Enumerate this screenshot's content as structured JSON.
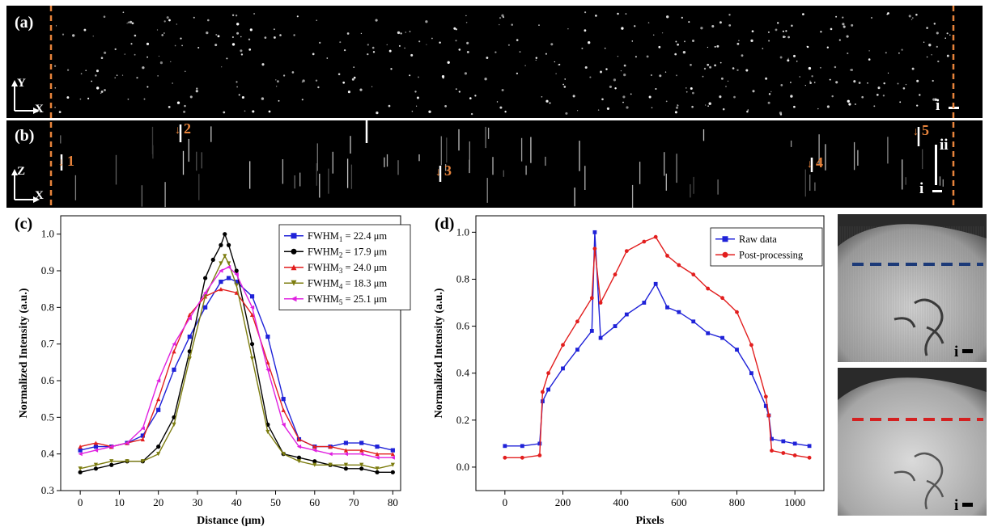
{
  "panels": {
    "a": {
      "label": "(a)",
      "axis_v": "Y",
      "axis_h": "X",
      "scale": "i"
    },
    "b": {
      "label": "(b)",
      "axis_v": "Z",
      "axis_h": "X",
      "scale_i": "i",
      "scale_ii": "ii",
      "markers": [
        "1",
        "2",
        "3",
        "4",
        "5"
      ]
    },
    "c": {
      "label": "(c)"
    },
    "d": {
      "label": "(d)"
    },
    "e": {
      "scale": "i"
    },
    "f": {
      "scale": "i"
    }
  },
  "colors": {
    "orange": "#e8843c",
    "blue_line": "#1c3a78",
    "red_line": "#d42020"
  },
  "chart_data": [
    {
      "type": "line",
      "xlabel": "Distance (μm)",
      "ylabel": "Normalized Intensity (a.u.)",
      "xlim": [
        -5,
        82
      ],
      "ylim": [
        0.3,
        1.05
      ],
      "xticks": [
        0,
        10,
        20,
        30,
        40,
        50,
        60,
        70,
        80
      ],
      "yticks": [
        0.3,
        0.4,
        0.5,
        0.6,
        0.7,
        0.8,
        0.9,
        1.0
      ],
      "legend_position": "top-right",
      "series": [
        {
          "name": "FWHM1 = 22.4 μm",
          "legend_main": "FWHM",
          "legend_sub": "1",
          "legend_rest": " = 22.4 μm",
          "color": "#1f22d8",
          "marker": "square",
          "x": [
            0,
            4,
            8,
            12,
            16,
            20,
            24,
            28,
            32,
            36,
            38,
            40,
            44,
            48,
            52,
            56,
            60,
            64,
            68,
            72,
            76,
            80
          ],
          "y": [
            0.41,
            0.42,
            0.42,
            0.43,
            0.45,
            0.52,
            0.63,
            0.72,
            0.8,
            0.87,
            0.88,
            0.87,
            0.83,
            0.72,
            0.55,
            0.44,
            0.42,
            0.42,
            0.43,
            0.43,
            0.42,
            0.41
          ]
        },
        {
          "name": "FWHM2 = 17.9 μm",
          "legend_main": "FWHM",
          "legend_sub": "2",
          "legend_rest": " = 17.9 μm",
          "color": "#000000",
          "marker": "circle",
          "x": [
            0,
            4,
            8,
            12,
            16,
            20,
            24,
            28,
            32,
            34,
            36,
            37,
            38,
            40,
            44,
            48,
            52,
            56,
            60,
            64,
            68,
            72,
            76,
            80
          ],
          "y": [
            0.35,
            0.36,
            0.37,
            0.38,
            0.38,
            0.42,
            0.5,
            0.68,
            0.88,
            0.93,
            0.97,
            1.0,
            0.97,
            0.9,
            0.7,
            0.48,
            0.4,
            0.39,
            0.38,
            0.37,
            0.36,
            0.36,
            0.35,
            0.35
          ]
        },
        {
          "name": "FWHM3 = 24.0 μm",
          "legend_main": "FWHM",
          "legend_sub": "3",
          "legend_rest": " = 24.0 μm",
          "color": "#e21e1e",
          "marker": "triangle",
          "x": [
            0,
            4,
            8,
            12,
            16,
            20,
            24,
            28,
            32,
            36,
            40,
            44,
            48,
            52,
            56,
            60,
            64,
            68,
            72,
            76,
            80
          ],
          "y": [
            0.42,
            0.43,
            0.42,
            0.43,
            0.44,
            0.55,
            0.68,
            0.78,
            0.83,
            0.85,
            0.84,
            0.78,
            0.65,
            0.52,
            0.44,
            0.42,
            0.42,
            0.41,
            0.41,
            0.4,
            0.4
          ]
        },
        {
          "name": "FWHM4 = 18.3 μm",
          "legend_main": "FWHM",
          "legend_sub": "4",
          "legend_rest": " = 18.3 μm",
          "color": "#7d7d10",
          "marker": "triangle-down",
          "x": [
            0,
            4,
            8,
            12,
            16,
            20,
            24,
            28,
            32,
            36,
            37,
            38,
            40,
            44,
            48,
            52,
            56,
            60,
            64,
            68,
            72,
            76,
            80
          ],
          "y": [
            0.36,
            0.37,
            0.38,
            0.38,
            0.38,
            0.4,
            0.48,
            0.66,
            0.83,
            0.92,
            0.94,
            0.92,
            0.86,
            0.66,
            0.46,
            0.4,
            0.38,
            0.37,
            0.37,
            0.37,
            0.37,
            0.36,
            0.37
          ]
        },
        {
          "name": "FWHM5 = 25.1 μm",
          "legend_main": "FWHM",
          "legend_sub": "5",
          "legend_rest": " = 25.1 μm",
          "color": "#e020e0",
          "marker": "triangle-left",
          "x": [
            0,
            4,
            8,
            12,
            16,
            20,
            24,
            28,
            32,
            36,
            38,
            40,
            44,
            48,
            52,
            56,
            60,
            64,
            68,
            72,
            76,
            80
          ],
          "y": [
            0.4,
            0.41,
            0.42,
            0.43,
            0.47,
            0.6,
            0.7,
            0.77,
            0.84,
            0.9,
            0.91,
            0.89,
            0.8,
            0.63,
            0.48,
            0.42,
            0.41,
            0.4,
            0.4,
            0.4,
            0.39,
            0.39
          ]
        }
      ]
    },
    {
      "type": "line",
      "xlabel": "Pixels",
      "ylabel": "Normalized Intensity (a.u.)",
      "xlim": [
        -100,
        1100
      ],
      "ylim": [
        -0.1,
        1.07
      ],
      "xticks": [
        0,
        200,
        400,
        600,
        800,
        1000
      ],
      "yticks": [
        0.0,
        0.2,
        0.4,
        0.6,
        0.8,
        1.0
      ],
      "legend_position": "top-right",
      "series": [
        {
          "name": "Raw data",
          "color": "#1f22d8",
          "marker": "square",
          "x": [
            0,
            60,
            120,
            130,
            150,
            200,
            250,
            300,
            310,
            330,
            380,
            420,
            480,
            520,
            560,
            600,
            650,
            700,
            750,
            800,
            850,
            900,
            910,
            920,
            960,
            1000,
            1050
          ],
          "y": [
            0.09,
            0.09,
            0.1,
            0.28,
            0.33,
            0.42,
            0.5,
            0.58,
            1.0,
            0.55,
            0.6,
            0.65,
            0.7,
            0.78,
            0.68,
            0.66,
            0.62,
            0.57,
            0.55,
            0.5,
            0.4,
            0.26,
            0.22,
            0.12,
            0.11,
            0.1,
            0.09
          ]
        },
        {
          "name": "Post-processing",
          "color": "#e21e1e",
          "marker": "circle",
          "x": [
            0,
            60,
            120,
            130,
            150,
            200,
            250,
            300,
            310,
            330,
            380,
            420,
            480,
            520,
            560,
            600,
            650,
            700,
            750,
            800,
            850,
            900,
            910,
            920,
            960,
            1000,
            1050
          ],
          "y": [
            0.04,
            0.04,
            0.05,
            0.32,
            0.4,
            0.52,
            0.62,
            0.72,
            0.93,
            0.7,
            0.82,
            0.92,
            0.96,
            0.98,
            0.9,
            0.86,
            0.82,
            0.76,
            0.72,
            0.66,
            0.52,
            0.3,
            0.22,
            0.07,
            0.06,
            0.05,
            0.04
          ]
        }
      ]
    }
  ]
}
